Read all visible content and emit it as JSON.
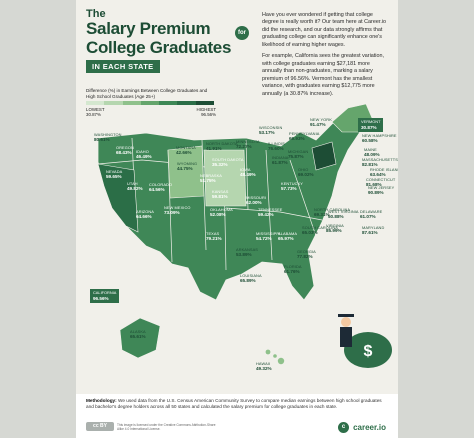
{
  "header": {
    "the": "The",
    "line1": "Salary Premium",
    "badge": "for",
    "line2": "College Graduates",
    "subtitle": "IN EACH STATE"
  },
  "intro": {
    "p1": "Have you ever wondered if getting that college degree is really worth it? Our team here at Career.io did the research, and our data strongly affirms that graduating college can significantly enhance one's likelihood of earning higher wages.",
    "p2": "For example, California sees the greatest variation, with college graduates earning $27,181 more annually than non-graduates, marking a salary premium of 96.56%. Vermont has the smallest variance, with graduates earning $12,775 more annually (a 30.87% increase)."
  },
  "legend": {
    "title": "Difference (%) in Earnings Between College Graduates and High School Graduates (Age 25+)",
    "low_label": "LOWEST",
    "low_value": "30.87%",
    "high_label": "HIGHEST",
    "high_value": "96.56%",
    "colors": [
      "#d4e7cf",
      "#b5d6af",
      "#8fc18b",
      "#65a56c",
      "#3e8856",
      "#2b6e47",
      "#1d4d35"
    ]
  },
  "map": {
    "fill_color": "#3f8757",
    "border_color": "#f1f0ea",
    "states": [
      {
        "state": "WASHINGTON",
        "value": "80.61%"
      },
      {
        "state": "OREGON",
        "value": "68.43%"
      },
      {
        "state": "IDAHO",
        "value": "46.49%"
      },
      {
        "state": "MONTANA",
        "value": "42.66%"
      },
      {
        "state": "WYOMING",
        "value": "44.75%"
      },
      {
        "state": "NEVADA",
        "value": "59.65%"
      },
      {
        "state": "UTAH",
        "value": "49.82%"
      },
      {
        "state": "COLORADO",
        "value": "64.56%"
      },
      {
        "state": "ARIZONA",
        "value": "64.66%"
      },
      {
        "state": "NEW MEXICO",
        "value": "73.09%"
      },
      {
        "state": "NORTH DAKOTA",
        "value": "41.91%"
      },
      {
        "state": "SOUTH DAKOTA",
        "value": "35.32%"
      },
      {
        "state": "NEBRASKA",
        "value": "51.75%"
      },
      {
        "state": "KANSAS",
        "value": "59.81%"
      },
      {
        "state": "OKLAHOMA",
        "value": "52.08%"
      },
      {
        "state": "TEXAS",
        "value": "79.21%"
      },
      {
        "state": "MINNESOTA",
        "value": "72.27%"
      },
      {
        "state": "IOWA",
        "value": "48.49%"
      },
      {
        "state": "MISSOURI",
        "value": "62.00%"
      },
      {
        "state": "ARKANSAS",
        "value": "53.89%"
      },
      {
        "state": "LOUISIANA",
        "value": "65.89%"
      },
      {
        "state": "WISCONSIN",
        "value": "53.17%"
      },
      {
        "state": "ILLINOIS",
        "value": "76.60%"
      },
      {
        "state": "MICHIGAN",
        "value": "75.87%"
      },
      {
        "state": "INDIANA",
        "value": "61.87%"
      },
      {
        "state": "OHIO",
        "value": "69.02%"
      },
      {
        "state": "KENTUCKY",
        "value": "57.73%"
      },
      {
        "state": "TENNESSEE",
        "value": "59.42%"
      },
      {
        "state": "MISSISSIPPI",
        "value": "54.72%"
      },
      {
        "state": "ALABAMA",
        "value": "65.97%"
      },
      {
        "state": "GEORGIA",
        "value": "77.82%"
      },
      {
        "state": "FLORIDA",
        "value": "61.76%"
      },
      {
        "state": "SOUTH CAROLINA",
        "value": "65.03%"
      },
      {
        "state": "NORTH CAROLINA",
        "value": "69.31%"
      },
      {
        "state": "VIRGINIA",
        "value": "85.99%"
      },
      {
        "state": "WEST VIRGINIA",
        "value": "50.88%"
      },
      {
        "state": "PENNSYLVANIA",
        "value": "69.93%"
      },
      {
        "state": "NEW YORK",
        "value": "91.47%"
      },
      {
        "state": "VERMONT",
        "value": "30.87%"
      },
      {
        "state": "NEW HAMPSHIRE",
        "value": "60.58%"
      },
      {
        "state": "MAINE",
        "value": "48.09%"
      },
      {
        "state": "MASSACHUSETTS",
        "value": "82.81%"
      },
      {
        "state": "RHODE ISLAND",
        "value": "63.64%"
      },
      {
        "state": "CONNECTICUT",
        "value": "81.68%"
      },
      {
        "state": "NEW JERSEY",
        "value": "90.89%"
      },
      {
        "state": "DELAWARE",
        "value": "61.07%"
      },
      {
        "state": "MARYLAND",
        "value": "87.61%"
      },
      {
        "state": "CALIFORNIA",
        "value": "96.56%"
      },
      {
        "state": "ALASKA",
        "value": "65.61%"
      },
      {
        "state": "HAWAII",
        "value": "49.32%"
      }
    ]
  },
  "footer": {
    "method_label": "Methodology:",
    "method_text": "We used data from the U.S. Census American Community Survey to compare median earnings between high school graduates and bachelor's degree holders across all 50 states and calculated the salary premium for college graduates in each state.",
    "cc_label": "cc BY",
    "license_text": "This image is licensed under the Creative Commons Attribution-Share Alike 4.0 International License.",
    "brand_glyph": "c",
    "brand": "career.io"
  }
}
